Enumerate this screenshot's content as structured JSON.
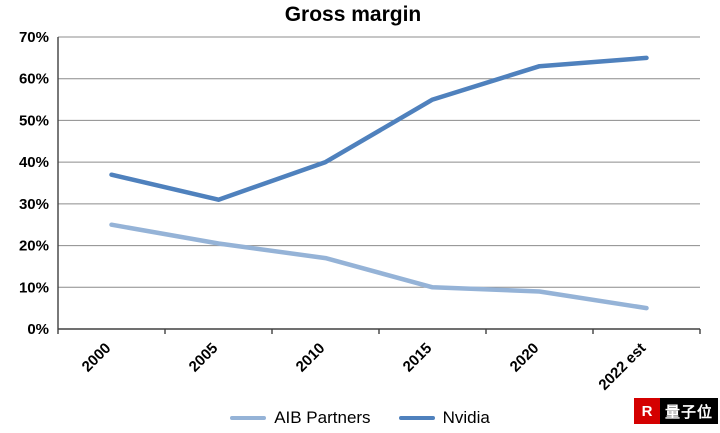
{
  "chart_data": {
    "type": "line",
    "title": "Gross margin",
    "categories": [
      "2000",
      "2005",
      "2010",
      "2015",
      "2020",
      "2022 est"
    ],
    "series": [
      {
        "name": "AIB Partners",
        "color": "#95b3d7",
        "values": [
          25,
          20.5,
          17,
          10,
          9,
          5
        ]
      },
      {
        "name": "Nvidia",
        "color": "#4f81bd",
        "values": [
          37,
          31,
          40,
          55,
          63,
          65
        ]
      }
    ],
    "ylim": [
      0,
      70
    ],
    "yticks": [
      {
        "value": 0,
        "label": "0%"
      },
      {
        "value": 10,
        "label": "10%"
      },
      {
        "value": 20,
        "label": "20%"
      },
      {
        "value": 30,
        "label": "30%"
      },
      {
        "value": 40,
        "label": "40%"
      },
      {
        "value": 50,
        "label": "50%"
      },
      {
        "value": 60,
        "label": "60%"
      },
      {
        "value": 70,
        "label": "70%"
      }
    ],
    "grid": "horizontal",
    "legend_position": "bottom"
  },
  "watermark": {
    "logo_letter": "R",
    "text": "量子位"
  }
}
